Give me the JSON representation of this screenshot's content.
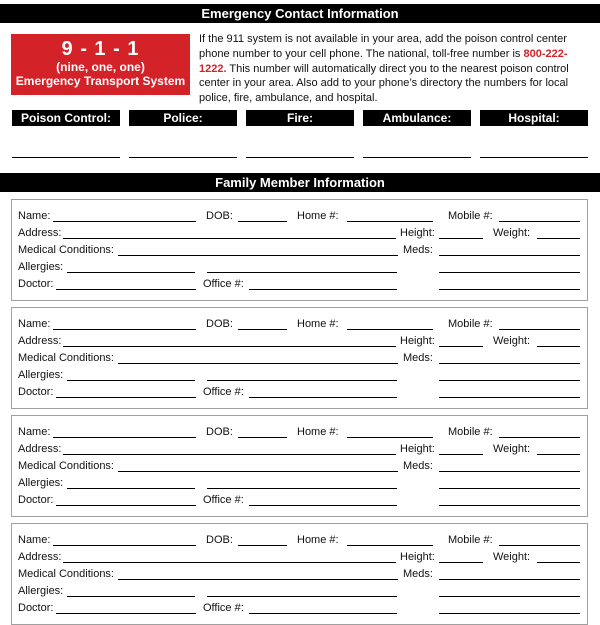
{
  "header1": "Emergency Contact Information",
  "red_box": {
    "number": "9 - 1 - 1",
    "spelled": "(nine, one, one)",
    "system": "Emergency Transport System"
  },
  "intro": {
    "before": "If the 911 system is not available in your area, add the poison control center phone number to your cell phone. The national, toll-free number is ",
    "phone": "800-222-1222.",
    "after": " This number will automatically direct you to the nearest poison control center in your area. Also add to your phone’s directory the numbers for local police, fire, ambulance, and hospital."
  },
  "contacts": [
    "Poison Control:",
    "Police:",
    "Fire:",
    "Ambulance:",
    "Hospital:"
  ],
  "header2": "Family Member Information",
  "card_labels": {
    "name": "Name:",
    "dob": "DOB:",
    "home": "Home #:",
    "mobile": "Mobile #:",
    "address": "Address:",
    "height": "Height:",
    "weight": "Weight:",
    "medical": "Medical Conditions:",
    "meds": "Meds:",
    "allergies": "Allergies:",
    "doctor": "Doctor:",
    "office": "Office #:"
  },
  "card_count": 4,
  "colors": {
    "accent": "#d42229",
    "bar": "#000000",
    "card_border": "#a0a0a0"
  }
}
